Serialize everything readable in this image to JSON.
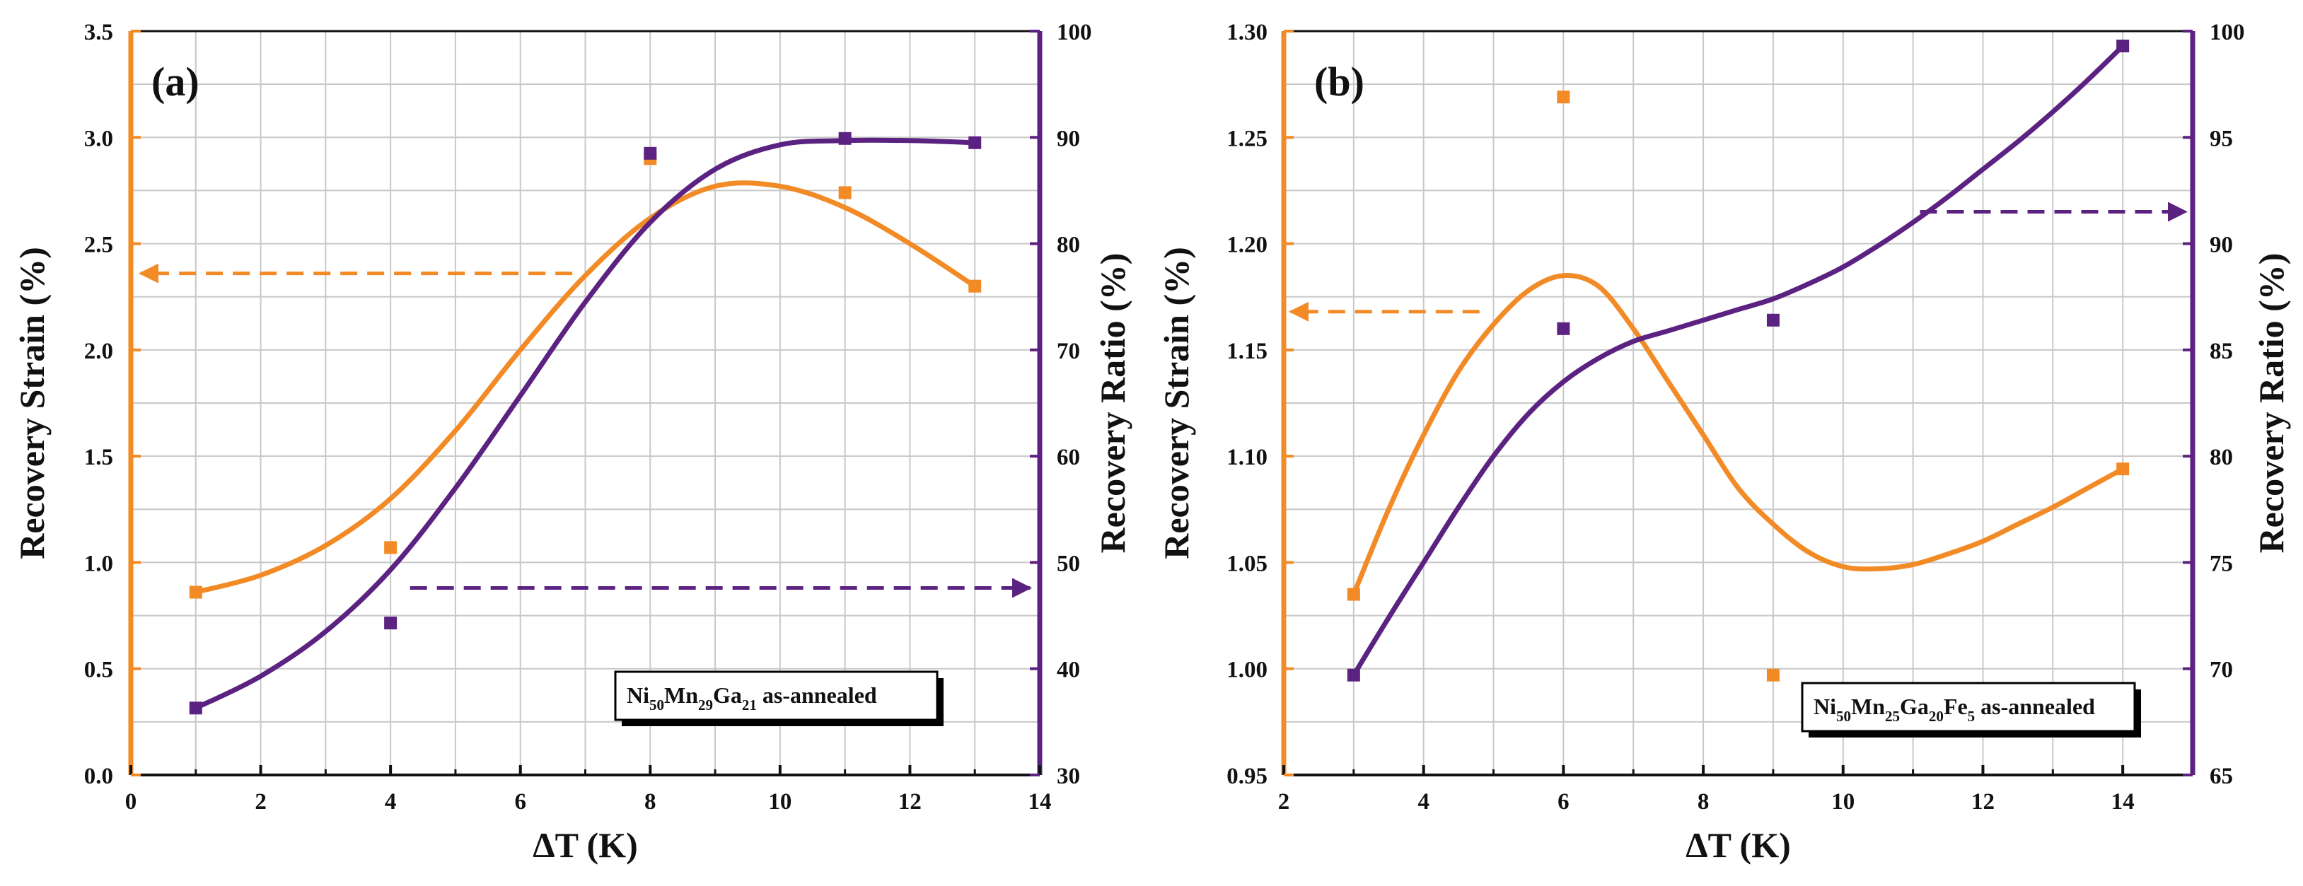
{
  "colors": {
    "strain": "#F28A26",
    "ratio": "#5B2281",
    "grid": "#C8C8C8",
    "axis": "#111111"
  },
  "chart_data": [
    {
      "type": "scatter",
      "panel_label": "(a)",
      "xlabel": "ΔT (K)",
      "ylabel_left": "Recovery Strain (%)",
      "ylabel_right": "Recovery Ratio (%)",
      "xlim": [
        0,
        14
      ],
      "xticks": [
        0,
        2,
        4,
        6,
        8,
        10,
        12,
        14
      ],
      "xtick_labels": [
        "0",
        "2",
        "4",
        "6",
        "8",
        "10",
        "12",
        "14"
      ],
      "ylim_left": [
        0,
        3.5
      ],
      "yticks_left": [
        0,
        0.5,
        1,
        1.5,
        2,
        2.5,
        3,
        3.5
      ],
      "ytick_labels_left": [
        "0.0",
        "0.5",
        "1.0",
        "1.5",
        "2.0",
        "2.5",
        "3.0",
        "3.5"
      ],
      "ylim_right": [
        30,
        100
      ],
      "yticks_right": [
        30,
        40,
        50,
        60,
        70,
        80,
        90,
        100
      ],
      "ytick_labels_right": [
        "30",
        "40",
        "50",
        "60",
        "70",
        "80",
        "90",
        "100"
      ],
      "grid": true,
      "series": [
        {
          "name": "Recovery Strain",
          "axis": "left",
          "color": "#F28A26",
          "x": [
            1,
            4,
            8,
            11,
            13
          ],
          "y": [
            0.86,
            1.07,
            2.9,
            2.74,
            2.3
          ],
          "fit_x": [
            1,
            2,
            3,
            4,
            5,
            6,
            7,
            8,
            9,
            10,
            11,
            12,
            13
          ],
          "fit_y": [
            0.86,
            0.94,
            1.08,
            1.3,
            1.62,
            2.0,
            2.35,
            2.62,
            2.77,
            2.77,
            2.67,
            2.5,
            2.3
          ]
        },
        {
          "name": "Recovery Ratio",
          "axis": "right",
          "color": "#5B2281",
          "x": [
            1,
            4,
            8,
            11,
            13
          ],
          "y": [
            36.3,
            44.3,
            88.5,
            89.9,
            89.5
          ],
          "fit_x": [
            1,
            2,
            3,
            4,
            5,
            6,
            7,
            8,
            9,
            10,
            11,
            12,
            13
          ],
          "fit_y": [
            36.3,
            39.3,
            43.5,
            49.3,
            57.0,
            65.7,
            74.5,
            82.0,
            87.0,
            89.3,
            89.7,
            89.7,
            89.5
          ]
        }
      ],
      "arrows": [
        {
          "axis": "left",
          "x_from": 6.8,
          "x_to": 0.15,
          "y": 2.36,
          "color": "#F28A26"
        },
        {
          "axis": "left",
          "x_from": 4.3,
          "x_to": 13.85,
          "y": 0.88,
          "color": "#5B2281"
        }
      ],
      "annotation": {
        "parts": [
          "Ni",
          "50",
          "Mn",
          "29",
          "Ga",
          "21",
          " as-annealed"
        ]
      }
    },
    {
      "type": "scatter",
      "panel_label": "(b)",
      "xlabel": "ΔT (K)",
      "ylabel_left": "Recovery Strain (%)",
      "ylabel_right": "Recovery Ratio (%)",
      "xlim": [
        2,
        15
      ],
      "xticks": [
        2,
        4,
        6,
        8,
        10,
        12,
        14
      ],
      "xtick_labels": [
        "2",
        "4",
        "6",
        "8",
        "10",
        "12",
        "14"
      ],
      "ylim_left": [
        0.95,
        1.3
      ],
      "yticks_left": [
        0.95,
        1.0,
        1.05,
        1.1,
        1.15,
        1.2,
        1.25,
        1.3
      ],
      "ytick_labels_left": [
        "0.95",
        "1.00",
        "1.05",
        "1.10",
        "1.15",
        "1.20",
        "1.25",
        "1.30"
      ],
      "ylim_right": [
        65,
        100
      ],
      "yticks_right": [
        65,
        70,
        75,
        80,
        85,
        90,
        95,
        100
      ],
      "ytick_labels_right": [
        "65",
        "70",
        "75",
        "80",
        "85",
        "90",
        "95",
        "100"
      ],
      "grid": true,
      "series": [
        {
          "name": "Recovery Strain",
          "axis": "left",
          "color": "#F28A26",
          "x": [
            3,
            6,
            9,
            14
          ],
          "y": [
            1.035,
            1.269,
            0.997,
            1.094
          ],
          "fit_x": [
            3,
            3.5,
            4,
            4.5,
            5,
            5.5,
            6,
            6.5,
            7,
            7.5,
            8,
            8.5,
            9,
            9.5,
            10,
            10.5,
            11,
            11.5,
            12,
            12.5,
            13,
            13.5,
            14
          ],
          "fit_y": [
            1.035,
            1.075,
            1.11,
            1.14,
            1.162,
            1.178,
            1.185,
            1.18,
            1.16,
            1.135,
            1.11,
            1.085,
            1.068,
            1.055,
            1.048,
            1.047,
            1.049,
            1.054,
            1.06,
            1.068,
            1.076,
            1.085,
            1.094
          ]
        },
        {
          "name": "Recovery Ratio",
          "axis": "right",
          "color": "#5B2281",
          "x": [
            3,
            6,
            9,
            14
          ],
          "y": [
            69.7,
            86.0,
            86.4,
            99.3
          ],
          "fit_x": [
            3,
            3.5,
            4,
            4.5,
            5,
            5.5,
            6,
            6.5,
            7,
            7.5,
            8,
            8.5,
            9,
            9.5,
            10,
            10.5,
            11,
            11.5,
            12,
            12.5,
            13,
            13.5,
            14
          ],
          "fit_y": [
            69.7,
            72.4,
            75.0,
            77.6,
            80.0,
            82.0,
            83.5,
            84.6,
            85.4,
            85.9,
            86.4,
            86.9,
            87.4,
            88.1,
            88.9,
            89.9,
            91.0,
            92.2,
            93.5,
            94.8,
            96.2,
            97.7,
            99.3
          ]
        }
      ],
      "arrows": [
        {
          "axis": "left",
          "x_from": 4.8,
          "x_to": 2.1,
          "y": 1.168,
          "color": "#F28A26"
        },
        {
          "axis": "left",
          "x_from": 11.1,
          "x_to": 14.9,
          "y": 1.215,
          "color": "#5B2281"
        }
      ],
      "annotation": {
        "parts": [
          "Ni",
          "50",
          "Mn",
          "25",
          "Ga",
          "20",
          "Fe",
          "5",
          " as-annealed"
        ]
      }
    }
  ]
}
